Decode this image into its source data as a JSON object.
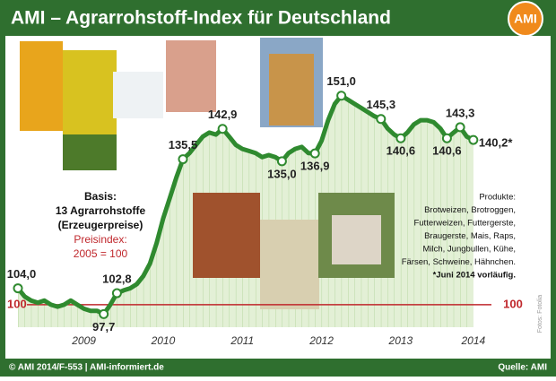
{
  "chart_data": {
    "type": "line",
    "title": "AMI – Agrarrohstoff-Index für Deutschland",
    "logo": "AMI",
    "categories": [
      null,
      null,
      null,
      null,
      null,
      null,
      null,
      null,
      null,
      null,
      "2009",
      null,
      null,
      null,
      null,
      null,
      null,
      null,
      null,
      null,
      null,
      null,
      "2010",
      null,
      null,
      null,
      null,
      null,
      null,
      null,
      null,
      null,
      null,
      null,
      "2011",
      null,
      null,
      null,
      null,
      null,
      null,
      null,
      null,
      null,
      null,
      null,
      "2012",
      null,
      null,
      null,
      null,
      null,
      null,
      null,
      null,
      null,
      null,
      null,
      "2013",
      null,
      null,
      null,
      null,
      null,
      null,
      null,
      null,
      null,
      null,
      "2014"
    ],
    "values": [
      104.0,
      102,
      101,
      100.5,
      101,
      100,
      99.5,
      100,
      101,
      100,
      99,
      98.5,
      98.5,
      97.7,
      100,
      102.8,
      103.5,
      104,
      105,
      107,
      110,
      115,
      121,
      126,
      131,
      135.5,
      137,
      139,
      141,
      142,
      141.5,
      142.9,
      141,
      139,
      138,
      137.5,
      137,
      136,
      136.5,
      136,
      135.0,
      137,
      138,
      138.5,
      137,
      136.9,
      140,
      145,
      149,
      151.0,
      150,
      149,
      148,
      147,
      146,
      145.3,
      143,
      141.5,
      140.6,
      142,
      144,
      145,
      145,
      144.5,
      143,
      140.6,
      142,
      143.3,
      141,
      140.2
    ],
    "value_labels": [
      "104,0",
      null,
      null,
      null,
      null,
      null,
      null,
      null,
      null,
      null,
      null,
      null,
      null,
      "97,7",
      null,
      "102,8",
      null,
      null,
      null,
      null,
      null,
      null,
      null,
      null,
      null,
      "135,5",
      null,
      null,
      null,
      null,
      null,
      "142,9",
      null,
      null,
      null,
      null,
      null,
      null,
      null,
      null,
      "135,0",
      null,
      null,
      null,
      null,
      "136,9",
      null,
      null,
      null,
      "151,0",
      null,
      null,
      null,
      null,
      null,
      "145,3",
      null,
      null,
      "140,6",
      null,
      null,
      null,
      null,
      null,
      null,
      "140,6",
      null,
      "143,3",
      null,
      "140,2*"
    ],
    "color": "#2f8a2f",
    "ylim": [
      94.5,
      154
    ],
    "yticks": [
      100
    ],
    "reference_color": "#c0282d",
    "basis": [
      "Basis:",
      "13 Agrarrohstoffe",
      "(Erzeugerpreise)"
    ],
    "index_note": [
      "Preisindex:",
      "2005 = 100"
    ],
    "products": [
      "Produkte:",
      "Brotweizen, Brotroggen,",
      "Futterweizen, Futtergerste,",
      "Braugerste, Mais, Raps,",
      "Milch, Jungbullen, Kühe,",
      "Färsen, Schweine, Hähnchen.",
      "*Juni 2014 vorläufig."
    ],
    "photo_credit": "Fotos: Fotolia",
    "footer_left": "© AMI 2014/F-553 | AMI-informiert.de",
    "footer_right": "Quelle: AMI"
  }
}
